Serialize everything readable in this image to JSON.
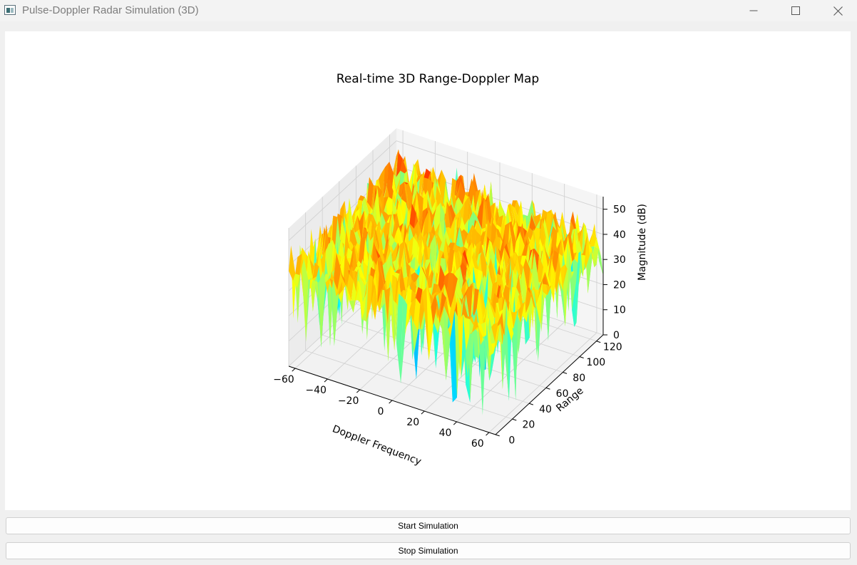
{
  "window": {
    "title": "Pulse-Doppler Radar Simulation (3D)",
    "icons": {
      "app": "app-window-icon",
      "minimize": "minimize-icon",
      "maximize": "maximize-icon",
      "close": "close-icon"
    }
  },
  "controls": {
    "start_label": "Start Simulation",
    "stop_label": "Stop Simulation"
  },
  "chart_data": {
    "type": "surface3d",
    "title": "Real-time 3D Range-Doppler Map",
    "xlabel": "Doppler Frequency",
    "ylabel": "Range",
    "zlabel": "Magnitude (dB)",
    "xlim": [
      -64,
      64
    ],
    "ylim": [
      0,
      128
    ],
    "zlim": [
      0,
      55
    ],
    "xticks": [
      -60,
      -40,
      -20,
      0,
      20,
      40,
      60
    ],
    "xtick_labels": [
      "−60",
      "−40",
      "−20",
      "0",
      "20",
      "40",
      "60"
    ],
    "yticks": [
      0,
      20,
      40,
      60,
      80,
      100,
      120
    ],
    "ytick_labels": [
      "0",
      "20",
      "40",
      "60",
      "80",
      "100",
      "120"
    ],
    "zticks": [
      0,
      10,
      20,
      30,
      40,
      50
    ],
    "ztick_labels": [
      "0",
      "10",
      "20",
      "30",
      "40",
      "50"
    ],
    "colormap": "jet",
    "grid": true,
    "surface_level_range_db": [
      5,
      55
    ],
    "surface_level_typical_db": 38
  }
}
